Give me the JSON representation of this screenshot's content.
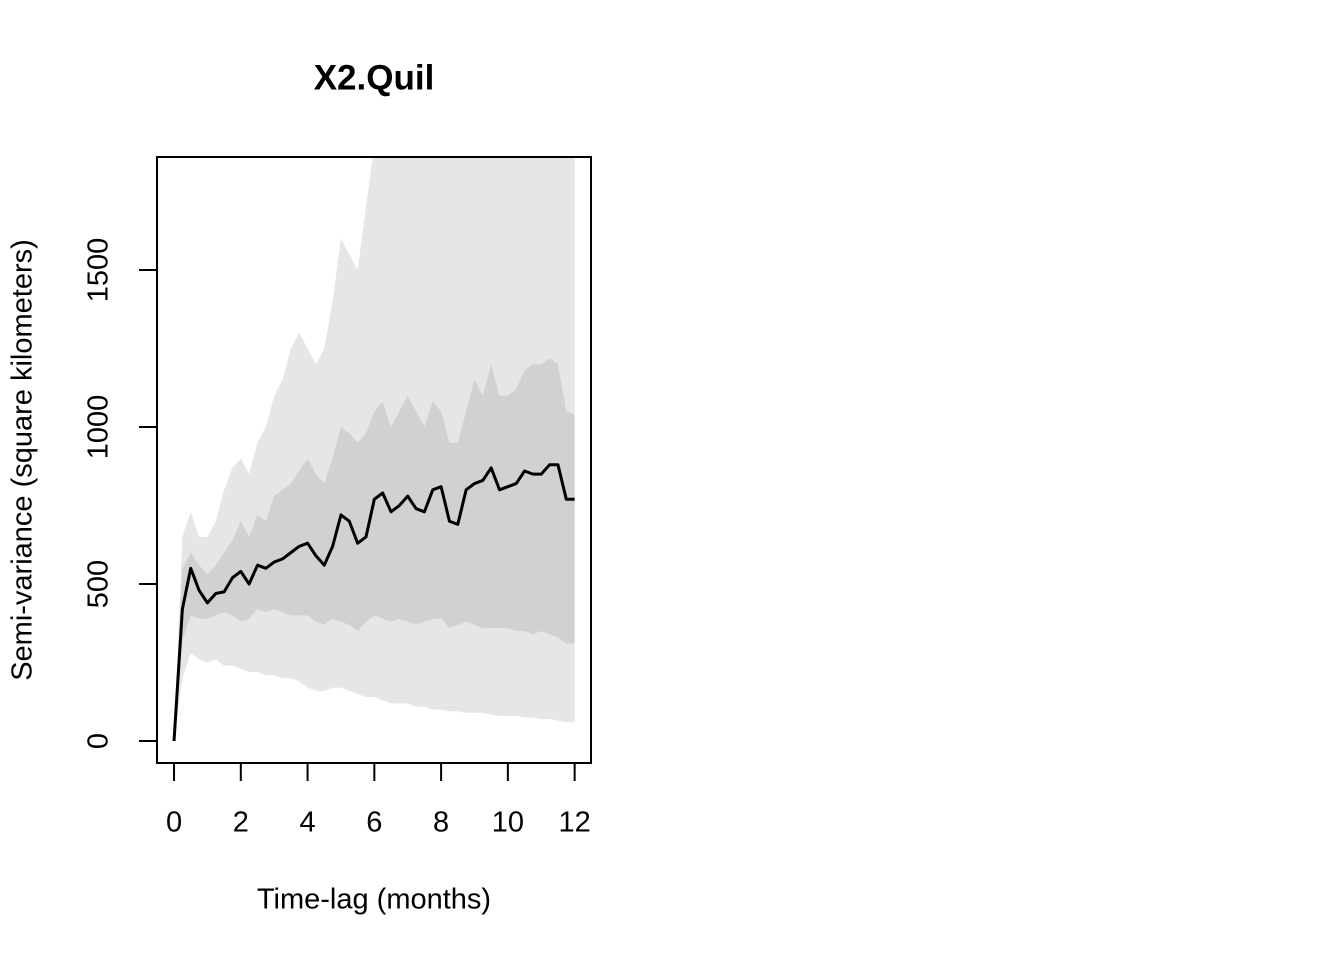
{
  "chart_data": {
    "type": "line",
    "title": "X2.Quil",
    "x_label": "Time-lag (months)",
    "y_label": "Semi-variance (square kilometers)",
    "xlim": [
      -0.51,
      12.49
    ],
    "ylim": [
      -70,
      1860
    ],
    "xticks": [
      0,
      2,
      4,
      6,
      8,
      10,
      12
    ],
    "yticks": [
      0,
      500,
      1000,
      1500
    ],
    "x": [
      0,
      0.25,
      0.5,
      0.75,
      1,
      1.25,
      1.5,
      1.75,
      2,
      2.25,
      2.5,
      2.75,
      3,
      3.25,
      3.5,
      3.75,
      4,
      4.25,
      4.5,
      4.75,
      5,
      5.25,
      5.5,
      5.75,
      6,
      6.25,
      6.5,
      6.75,
      7,
      7.25,
      7.5,
      7.75,
      8,
      8.25,
      8.5,
      8.75,
      9,
      9.25,
      9.5,
      9.75,
      10,
      10.25,
      10.5,
      10.75,
      11,
      11.25,
      11.5,
      11.75,
      12
    ],
    "bands": [
      {
        "color": "#e6e6e6",
        "upper": [
          0,
          650,
          730,
          650,
          650,
          700,
          800,
          870,
          900,
          850,
          950,
          1000,
          1100,
          1150,
          1250,
          1300,
          1250,
          1200,
          1250,
          1400,
          1600,
          1550,
          1500,
          1700,
          1900,
          2000,
          2000,
          2000,
          2000,
          2000,
          2000,
          2000,
          2000,
          2000,
          2000,
          2000,
          2000,
          2000,
          2000,
          2000,
          2000,
          2000,
          2000,
          2000,
          2000,
          2000,
          2000,
          2000,
          2000
        ],
        "lower": [
          0,
          200,
          280,
          260,
          250,
          260,
          240,
          240,
          230,
          220,
          220,
          210,
          210,
          200,
          200,
          190,
          170,
          160,
          160,
          170,
          170,
          160,
          150,
          140,
          140,
          130,
          120,
          120,
          120,
          110,
          110,
          100,
          100,
          95,
          95,
          90,
          90,
          90,
          85,
          80,
          80,
          80,
          75,
          75,
          70,
          70,
          65,
          60,
          60
        ]
      },
      {
        "color": "#d1d1d1",
        "upper": [
          0,
          550,
          600,
          560,
          530,
          560,
          600,
          640,
          700,
          650,
          720,
          700,
          780,
          800,
          820,
          860,
          900,
          850,
          820,
          900,
          1000,
          980,
          950,
          980,
          1050,
          1080,
          1000,
          1050,
          1100,
          1050,
          1000,
          1080,
          1050,
          950,
          950,
          1050,
          1150,
          1100,
          1200,
          1100,
          1100,
          1120,
          1180,
          1200,
          1200,
          1220,
          1200,
          1050,
          1040
        ],
        "lower": [
          0,
          320,
          400,
          390,
          390,
          400,
          410,
          400,
          380,
          390,
          420,
          410,
          420,
          410,
          400,
          400,
          400,
          380,
          370,
          390,
          380,
          370,
          350,
          380,
          400,
          390,
          380,
          390,
          380,
          370,
          380,
          390,
          390,
          360,
          370,
          380,
          370,
          360,
          360,
          360,
          360,
          350,
          350,
          340,
          350,
          340,
          330,
          310,
          310
        ]
      }
    ],
    "series": [
      {
        "color": "#000000",
        "values": [
          0,
          420,
          550,
          480,
          440,
          470,
          475,
          520,
          540,
          500,
          560,
          550,
          570,
          580,
          600,
          620,
          630,
          590,
          560,
          620,
          720,
          700,
          630,
          650,
          770,
          790,
          730,
          750,
          780,
          740,
          730,
          800,
          810,
          700,
          690,
          800,
          820,
          830,
          870,
          800,
          810,
          820,
          860,
          850,
          850,
          880,
          880,
          770,
          770
        ]
      }
    ]
  }
}
